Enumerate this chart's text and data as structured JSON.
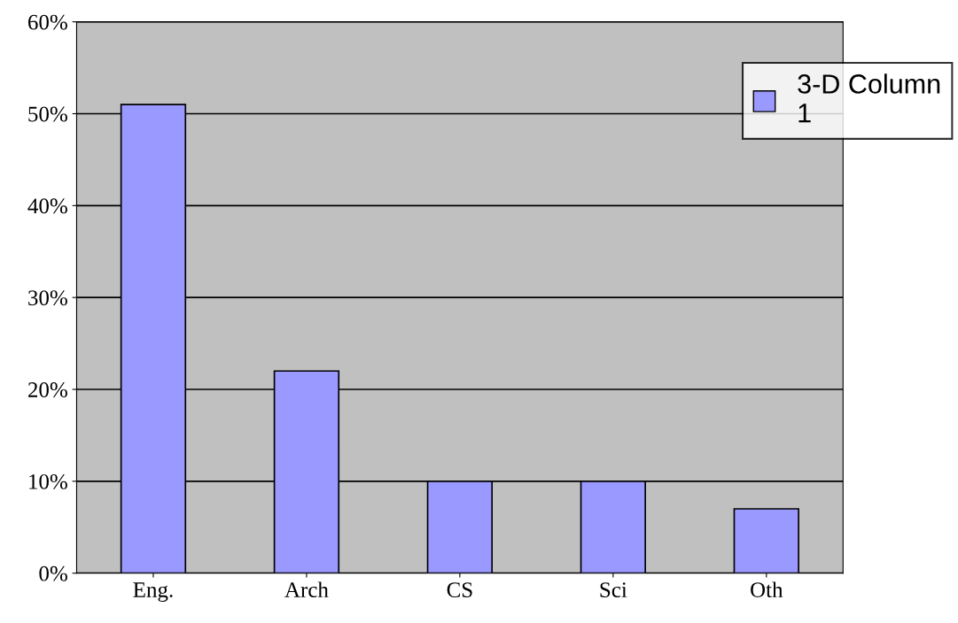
{
  "chart_data": {
    "type": "bar",
    "categories": [
      "Eng.",
      "Arch",
      "CS",
      "Sci",
      "Oth"
    ],
    "series": [
      {
        "name": "3-D Column\n1",
        "color": "#9999ff",
        "values": [
          51,
          22,
          10,
          10,
          7
        ]
      }
    ],
    "ylim": [
      0,
      60
    ],
    "yticks": [
      {
        "value": 0,
        "label": "0%"
      },
      {
        "value": 10,
        "label": "10%"
      },
      {
        "value": 20,
        "label": "20%"
      },
      {
        "value": 30,
        "label": "30%"
      },
      {
        "value": 40,
        "label": "40%"
      },
      {
        "value": 50,
        "label": "50%"
      },
      {
        "value": 60,
        "label": "60%"
      }
    ],
    "grid": "y",
    "legend": "top right"
  }
}
